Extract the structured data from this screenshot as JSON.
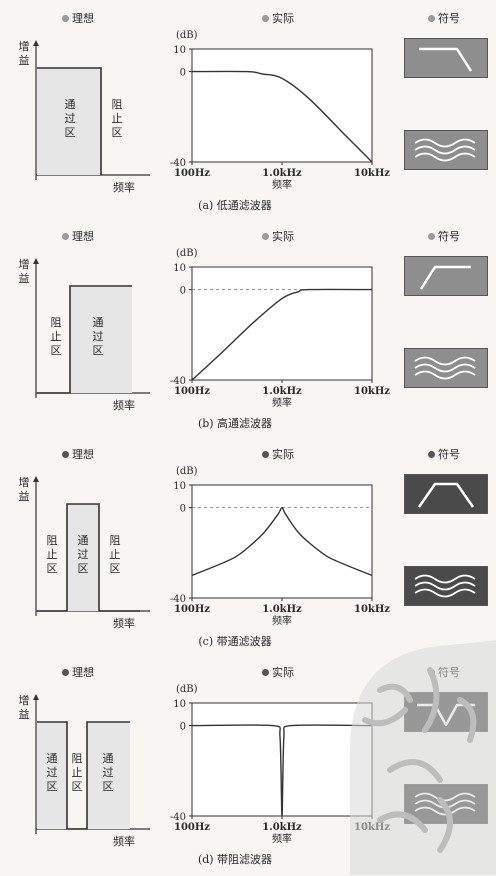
{
  "headers": {
    "ideal": "理想",
    "actual": "实际",
    "symbol": "符号"
  },
  "axis": {
    "gain": [
      "增",
      "益"
    ],
    "freq": "频率",
    "db_unit": "(dB)",
    "db_ticks": [
      "10",
      "0",
      "-40"
    ],
    "freq_ticks": [
      "100Hz",
      "1.0kHz",
      "10kHz"
    ]
  },
  "zones": {
    "pass": [
      "通",
      "过",
      "区"
    ],
    "stop": [
      "阻",
      "止",
      "区"
    ]
  },
  "panels": [
    {
      "id": "a",
      "caption": "(a) 低通滤波器",
      "type": "lowpass"
    },
    {
      "id": "b",
      "caption": "(b) 高通滤波器",
      "type": "highpass"
    },
    {
      "id": "c",
      "caption": "(c) 带通滤波器",
      "type": "bandpass"
    },
    {
      "id": "d",
      "caption": "(d) 带阻滤波器",
      "type": "bandstop"
    }
  ],
  "chart_data": [
    {
      "type": "line",
      "title": "(a) 低通滤波器",
      "xlabel": "频率",
      "ylabel": "(dB)",
      "x_scale": "log",
      "x_ticks": [
        "100Hz",
        "1.0kHz",
        "10kHz"
      ],
      "ylim": [
        -40,
        10
      ],
      "series": [
        {
          "points": [
            [
              100,
              0
            ],
            [
              400,
              0
            ],
            [
              600,
              -1
            ],
            [
              1000,
              -3
            ],
            [
              2000,
              -12
            ],
            [
              5000,
              -28
            ],
            [
              10000,
              -40
            ]
          ]
        }
      ]
    },
    {
      "type": "line",
      "title": "(b) 高通滤波器",
      "xlabel": "频率",
      "ylabel": "(dB)",
      "x_scale": "log",
      "x_ticks": [
        "100Hz",
        "1.0kHz",
        "10kHz"
      ],
      "ylim": [
        -40,
        10
      ],
      "series": [
        {
          "points": [
            [
              100,
              -40
            ],
            [
              200,
              -29
            ],
            [
              500,
              -14
            ],
            [
              1000,
              -4
            ],
            [
              1500,
              -1
            ],
            [
              2000,
              0
            ],
            [
              10000,
              0
            ]
          ]
        }
      ]
    },
    {
      "type": "line",
      "title": "(c) 带通滤波器",
      "xlabel": "频率",
      "ylabel": "(dB)",
      "x_scale": "log",
      "x_ticks": [
        "100Hz",
        "1.0kHz",
        "10kHz"
      ],
      "ylim": [
        -40,
        10
      ],
      "series": [
        {
          "points": [
            [
              100,
              -30
            ],
            [
              300,
              -22
            ],
            [
              600,
              -12
            ],
            [
              900,
              -3
            ],
            [
              1000,
              0
            ],
            [
              1100,
              -3
            ],
            [
              1600,
              -12
            ],
            [
              3300,
              -22
            ],
            [
              10000,
              -30
            ]
          ]
        }
      ]
    },
    {
      "type": "line",
      "title": "(d) 带阻滤波器",
      "xlabel": "频率",
      "ylabel": "(dB)",
      "x_scale": "log",
      "x_ticks": [
        "100Hz",
        "1.0kHz",
        "10kHz"
      ],
      "ylim": [
        -40,
        10
      ],
      "series": [
        {
          "points": [
            [
              100,
              0
            ],
            [
              800,
              0
            ],
            [
              950,
              -5
            ],
            [
              1000,
              -40
            ],
            [
              1050,
              -5
            ],
            [
              1250,
              0
            ],
            [
              10000,
              0
            ]
          ]
        }
      ]
    }
  ]
}
